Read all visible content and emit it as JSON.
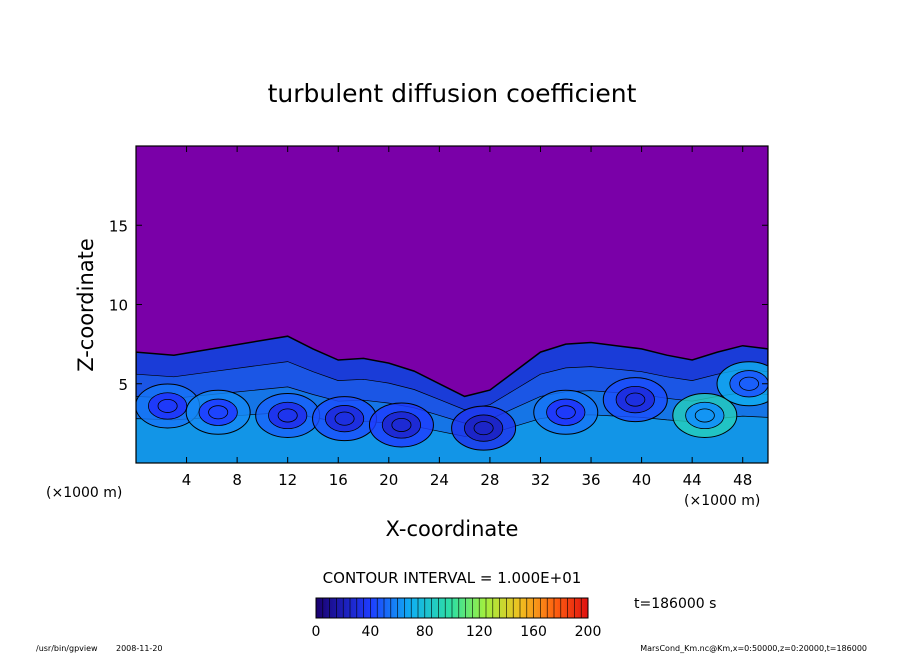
{
  "chart_data": {
    "type": "heatmap",
    "title": "turbulent diffusion coefficient",
    "xlabel": "X-coordinate",
    "ylabel": "Z-coordinate",
    "x_unit_left": "(×1000 m)",
    "x_unit_right": "(×1000 m)",
    "xlim": [
      0,
      50
    ],
    "ylim": [
      0,
      20
    ],
    "x_ticks": [
      4,
      8,
      12,
      16,
      20,
      24,
      28,
      32,
      36,
      40,
      44,
      48
    ],
    "y_ticks": [
      5,
      10,
      15
    ],
    "contour_interval": "CONTOUR INTERVAL = 1.000E+01",
    "time_label": "t=186000 s",
    "colorbar": {
      "min": 0,
      "max": 200,
      "ticks": [
        0,
        40,
        80,
        120,
        160,
        200
      ]
    },
    "background_value": 0,
    "turbulent_layer_top": [
      [
        0,
        7.0
      ],
      [
        3,
        6.8
      ],
      [
        6,
        7.2
      ],
      [
        9,
        7.6
      ],
      [
        12,
        8.0
      ],
      [
        14,
        7.2
      ],
      [
        16,
        6.5
      ],
      [
        18,
        6.6
      ],
      [
        20,
        6.3
      ],
      [
        22,
        5.8
      ],
      [
        24,
        5.0
      ],
      [
        26,
        4.2
      ],
      [
        28,
        4.6
      ],
      [
        30,
        5.8
      ],
      [
        32,
        7.0
      ],
      [
        34,
        7.5
      ],
      [
        36,
        7.6
      ],
      [
        38,
        7.4
      ],
      [
        40,
        7.2
      ],
      [
        42,
        6.8
      ],
      [
        44,
        6.5
      ],
      [
        46,
        7.0
      ],
      [
        48,
        7.4
      ],
      [
        50,
        7.2
      ]
    ],
    "eddies": [
      {
        "x": 2.5,
        "z": 3.6,
        "value": 55
      },
      {
        "x": 6.5,
        "z": 3.2,
        "value": 60
      },
      {
        "x": 12,
        "z": 3.0,
        "value": 50
      },
      {
        "x": 16.5,
        "z": 2.8,
        "value": 45
      },
      {
        "x": 21,
        "z": 2.4,
        "value": 40
      },
      {
        "x": 27.5,
        "z": 2.2,
        "value": 35
      },
      {
        "x": 34,
        "z": 3.2,
        "value": 55
      },
      {
        "x": 39.5,
        "z": 4.0,
        "value": 45
      },
      {
        "x": 45,
        "z": 3.0,
        "value": 90
      },
      {
        "x": 48.5,
        "z": 5.0,
        "value": 70
      }
    ]
  },
  "footer": {
    "program": "/usr/bin/gpview",
    "date": "2008-11-20",
    "source": "MarsCond_Km.nc@Km,x=0:50000,z=0:20000,t=186000"
  }
}
